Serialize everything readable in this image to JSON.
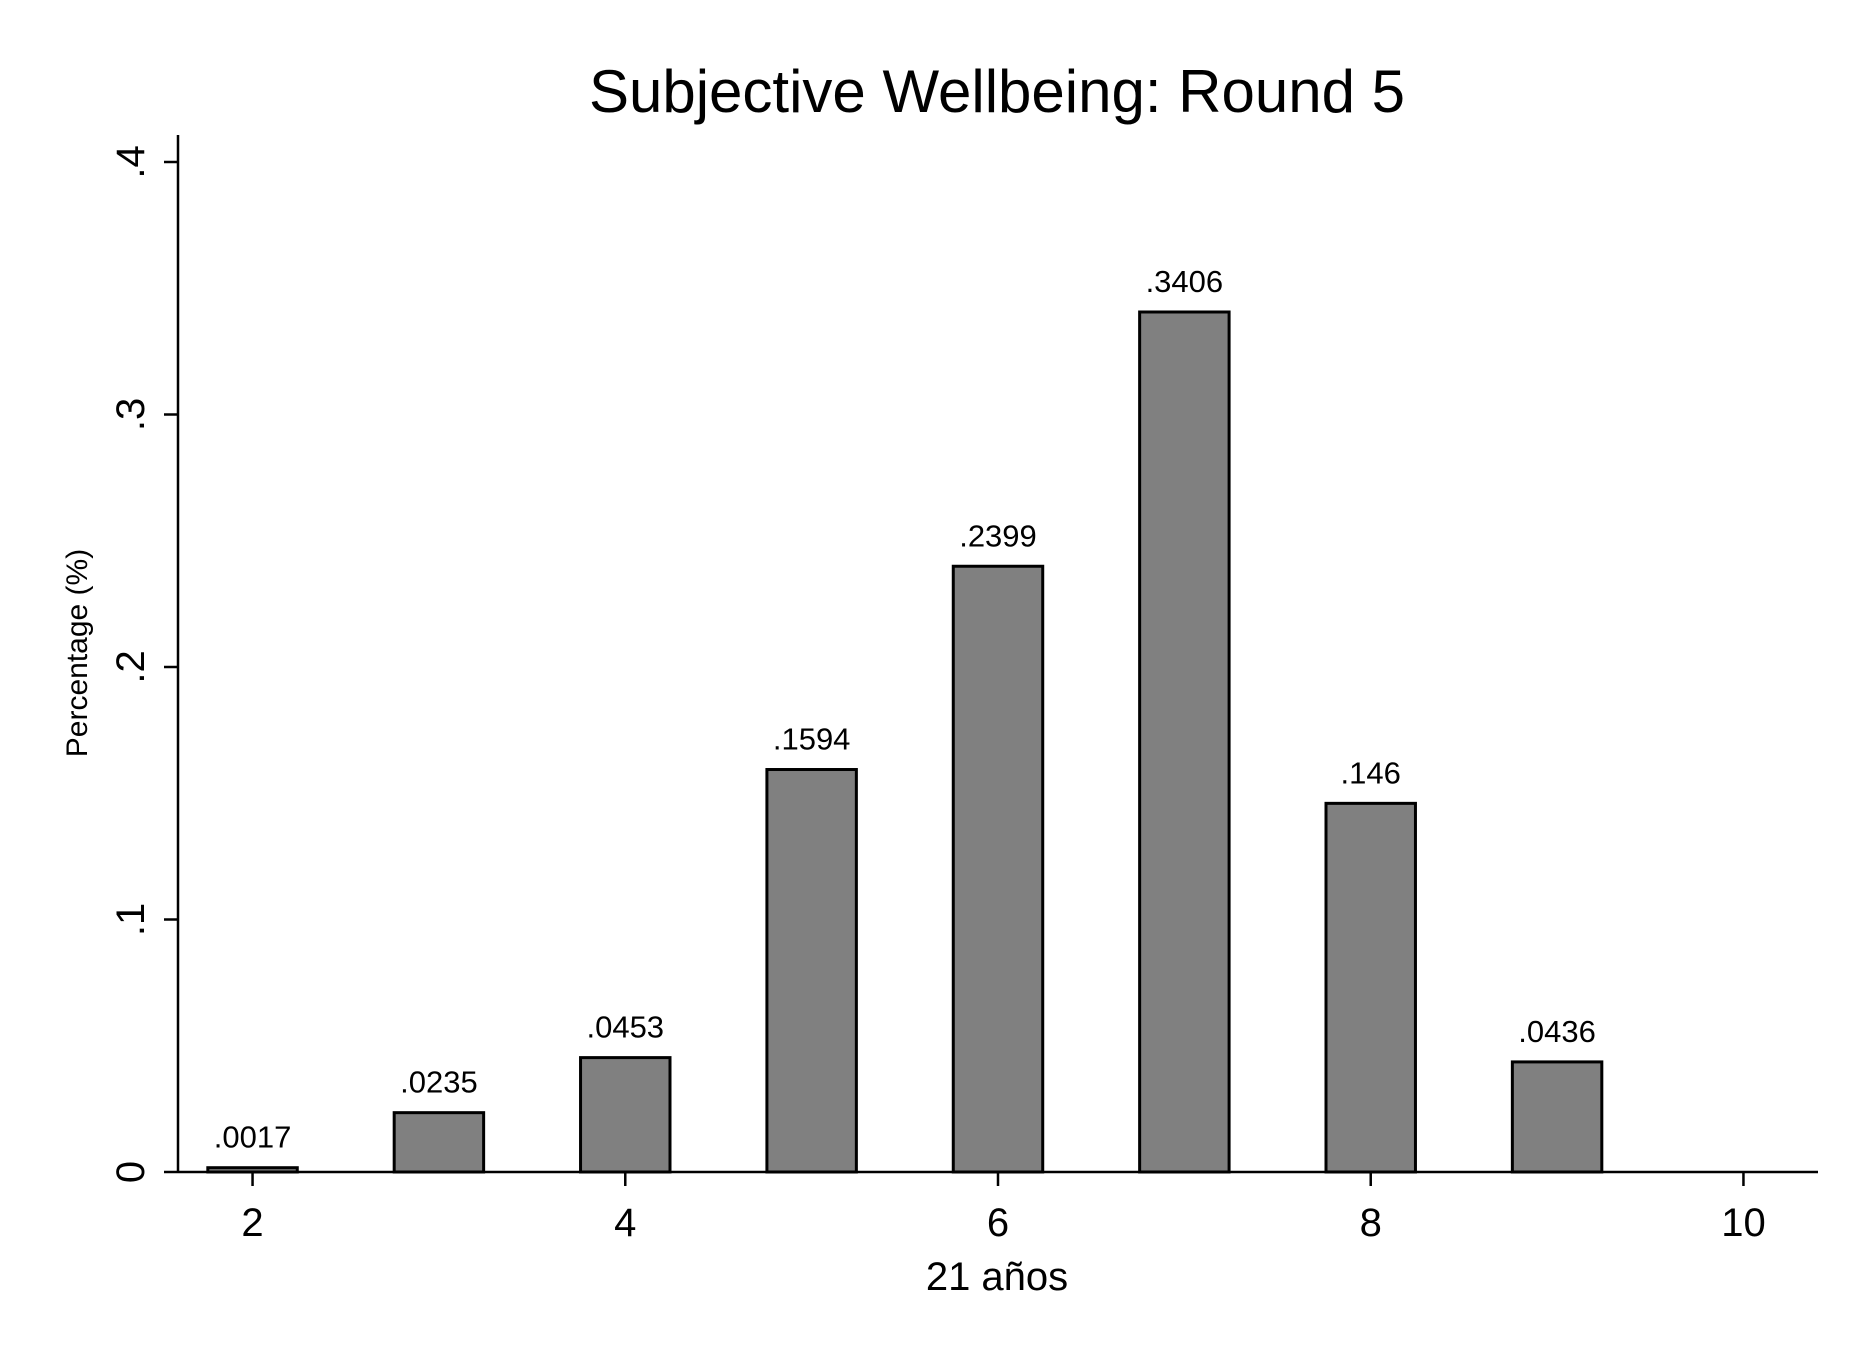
{
  "chart_data": {
    "type": "bar",
    "title": "Subjective Wellbeing: Round 5",
    "xlabel": "21 años",
    "ylabel": "Percentage (%)",
    "x": [
      2,
      3,
      4,
      5,
      6,
      7,
      8,
      9
    ],
    "values": [
      0.0017,
      0.0235,
      0.0453,
      0.1594,
      0.2399,
      0.3406,
      0.146,
      0.0436
    ],
    "value_labels": [
      ".0017",
      ".0235",
      ".0453",
      ".1594",
      ".2399",
      ".3406",
      ".146",
      ".0436"
    ],
    "xlim": [
      1.6,
      10.4
    ],
    "ylim": [
      0,
      0.4
    ],
    "xticks": [
      2,
      4,
      6,
      8,
      10
    ],
    "xtick_labels": [
      "2",
      "4",
      "6",
      "8",
      "10"
    ],
    "yticks": [
      0,
      0.1,
      0.2,
      0.3,
      0.4
    ],
    "ytick_labels": [
      "0",
      ".1",
      ".2",
      ".3",
      ".4"
    ],
    "bar_color": "#808080",
    "bar_edge_color": "#000000",
    "grid": false,
    "legend": "none"
  }
}
